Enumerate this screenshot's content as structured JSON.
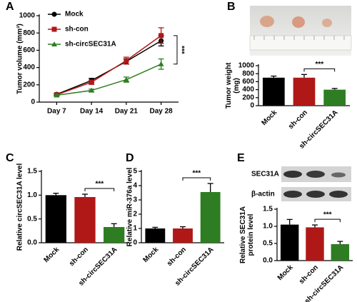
{
  "chart_data": [
    {
      "type": "line",
      "panel_label": "A",
      "ylabel": [
        "Tumor volume (mm³)"
      ],
      "categories": [
        "Day 7",
        "Day 14",
        "Day 21",
        "Day 28"
      ],
      "series": [
        {
          "name": "Mock",
          "color": "#000000",
          "marker": "circle",
          "values": [
            90,
            250,
            470,
            710
          ],
          "errors": [
            10,
            25,
            30,
            60
          ]
        },
        {
          "name": "sh-con",
          "color": "#b01818",
          "marker": "square",
          "values": [
            85,
            230,
            480,
            770
          ],
          "errors": [
            10,
            25,
            40,
            90
          ]
        },
        {
          "name": "sh-circSEC31A",
          "color": "#2f7d22",
          "marker": "triangle",
          "values": [
            80,
            135,
            260,
            440
          ],
          "errors": [
            10,
            15,
            30,
            60
          ]
        }
      ],
      "ylim": [
        0,
        1000
      ],
      "yticks": [
        0,
        200,
        400,
        600,
        800,
        1000
      ],
      "annotation": "***"
    },
    {
      "type": "bar",
      "panel_label": "B",
      "ylabel": [
        "Tumor weight",
        "(mg)"
      ],
      "categories": [
        "Mock",
        "sh-con",
        "sh-circSEC31A"
      ],
      "values": [
        700,
        700,
        400
      ],
      "errors": [
        40,
        80,
        30
      ],
      "colors": [
        "#000000",
        "#b01818",
        "#2f7d22"
      ],
      "ylim": [
        0,
        1000
      ],
      "yticks": [
        0,
        200,
        400,
        600,
        800,
        1000
      ],
      "annotation": "***"
    },
    {
      "type": "bar",
      "panel_label": "C",
      "ylabel": [
        "Relative circSEC31A level"
      ],
      "categories": [
        "Mock",
        "sh-con",
        "sh-circSEC31A"
      ],
      "values": [
        1.0,
        0.96,
        0.33
      ],
      "errors": [
        0.04,
        0.06,
        0.07
      ],
      "colors": [
        "#000000",
        "#b01818",
        "#2f7d22"
      ],
      "ylim": [
        0,
        1.5
      ],
      "yticks": [
        {
          "value": 0,
          "label": "0.0"
        },
        0.5,
        {
          "value": 1,
          "label": "1.0"
        },
        1.5
      ],
      "annotation": "***"
    },
    {
      "type": "bar",
      "panel_label": "D",
      "ylabel": [
        "Relative miR-376a level"
      ],
      "categories": [
        "Mock",
        "sh-con",
        "sh-circSEC31A"
      ],
      "values": [
        1.0,
        1.0,
        3.55
      ],
      "errors": [
        0.08,
        0.12,
        0.6
      ],
      "colors": [
        "#000000",
        "#b01818",
        "#2f7d22"
      ],
      "ylim": [
        0,
        5
      ],
      "yticks": [
        0,
        1,
        2,
        3,
        4,
        5
      ],
      "annotation": "***"
    },
    {
      "type": "bar",
      "panel_label": "E",
      "ylabel": [
        "Relative SEC31A",
        "protein level"
      ],
      "blot_labels": [
        "SEC31A",
        "β-actin"
      ],
      "categories": [
        "Mock",
        "sh-con",
        "sh-circSEC31A"
      ],
      "values": [
        1.05,
        0.97,
        0.48
      ],
      "errors": [
        0.15,
        0.07,
        0.08
      ],
      "colors": [
        "#000000",
        "#b01818",
        "#2f7d22"
      ],
      "ylim": [
        0,
        1.5
      ],
      "yticks": [
        {
          "value": 0,
          "label": "0.0"
        },
        0.5,
        {
          "value": 1,
          "label": "1.0"
        },
        1.5
      ],
      "annotation": "***"
    }
  ]
}
